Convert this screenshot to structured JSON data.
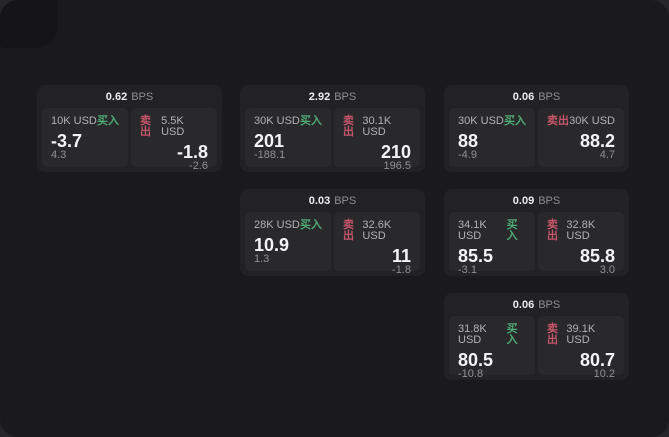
{
  "labels": {
    "bps_unit": "BPS",
    "buy": "买入",
    "sell": "卖出"
  },
  "colors": {
    "page_bg": "#1a1a1c",
    "card_bg": "#222224",
    "panel_bg": "#29292b",
    "buy_green": "#50a878",
    "sell_red": "#c4556a"
  },
  "cards": [
    {
      "bps": "0.62",
      "buy": {
        "amount": "10K USD",
        "value": "-3.7",
        "sub": "4.3"
      },
      "sell": {
        "amount": "5.5K USD",
        "value": "-1.8",
        "sub": "-2.6"
      }
    },
    {
      "bps": "2.92",
      "buy": {
        "amount": "30K USD",
        "value": "201",
        "sub": "-188.1"
      },
      "sell": {
        "amount": "30.1K USD",
        "value": "210",
        "sub": "196.5"
      }
    },
    {
      "bps": "0.06",
      "buy": {
        "amount": "30K USD",
        "value": "88",
        "sub": "-4.9"
      },
      "sell": {
        "amount": "30K USD",
        "value": "88.2",
        "sub": "4.7"
      }
    },
    {
      "bps": "0.03",
      "buy": {
        "amount": "28K USD",
        "value": "10.9",
        "sub": "1.3"
      },
      "sell": {
        "amount": "32.6K USD",
        "value": "11",
        "sub": "-1.8"
      }
    },
    {
      "bps": "0.09",
      "buy": {
        "amount": "34.1K USD",
        "value": "85.5",
        "sub": "-3.1"
      },
      "sell": {
        "amount": "32.8K USD",
        "value": "85.8",
        "sub": "3.0"
      }
    },
    {
      "bps": "0.06",
      "buy": {
        "amount": "31.8K USD",
        "value": "80.5",
        "sub": "-10.8"
      },
      "sell": {
        "amount": "39.1K USD",
        "value": "80.7",
        "sub": "10.2"
      }
    }
  ]
}
